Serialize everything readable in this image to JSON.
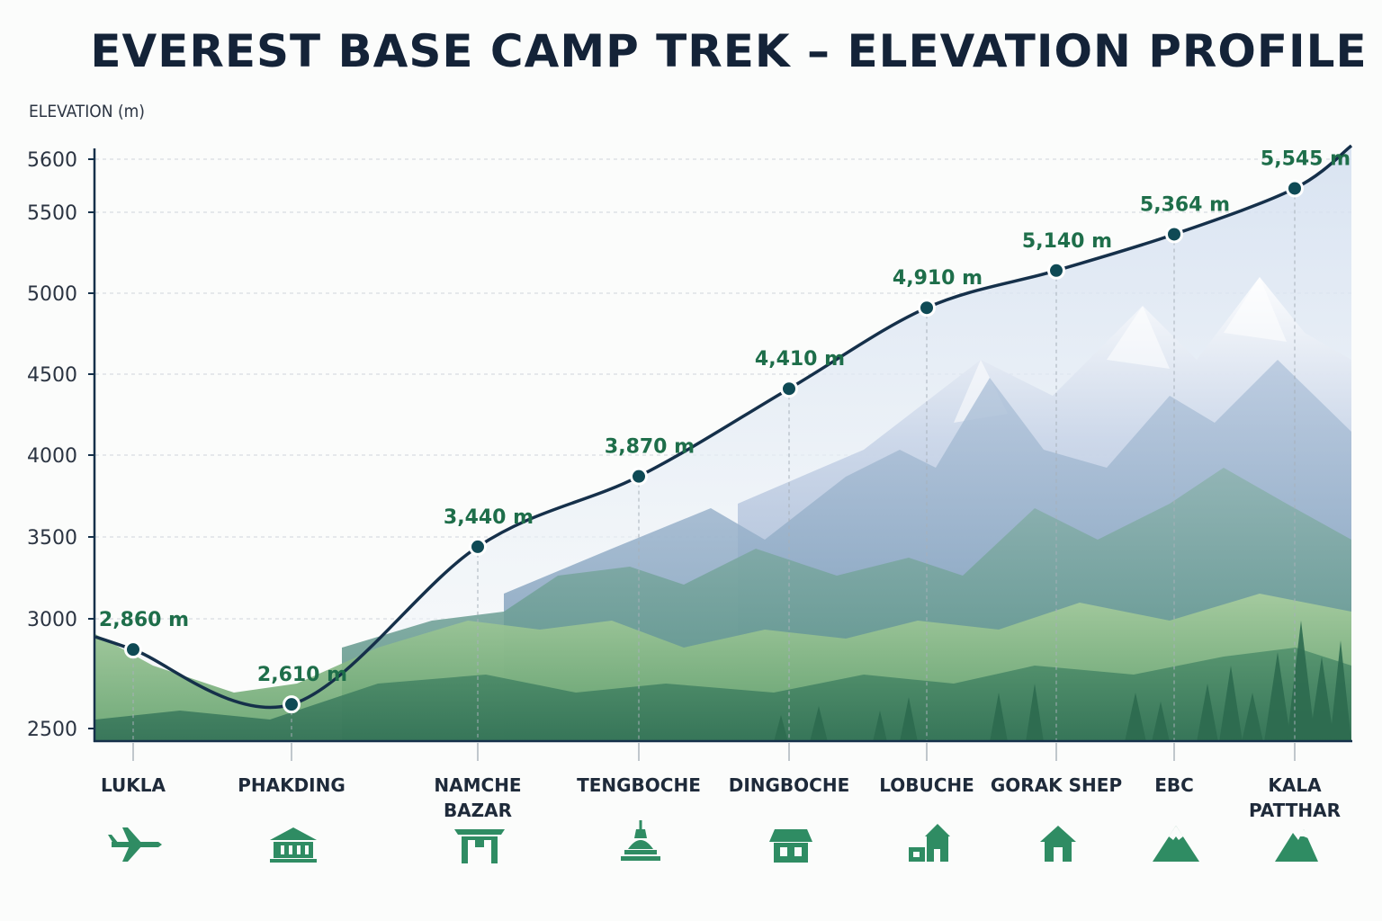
{
  "chart_data": {
    "type": "line",
    "title": "EVEREST BASE CAMP TREK – ELEVATION PROFILE",
    "ylabel": "ELEVATION (m)",
    "xlabel": "",
    "yticks": [
      2500,
      3000,
      3500,
      4000,
      4500,
      5000,
      5500,
      5600
    ],
    "grid": true,
    "categories": [
      "LUKLA",
      "PHAKDING",
      "NAMCHE BAZAR",
      "TENGBOCHE",
      "DINGBOCHE",
      "LOBUCHE",
      "GORAK SHEP",
      "EBC",
      "KALA PATTHAR"
    ],
    "values": [
      2860,
      2610,
      3440,
      3870,
      4410,
      4910,
      5140,
      5364,
      5545
    ],
    "data_labels": [
      "2,860 m",
      "2,610 m",
      "3,440 m",
      "3,870 m",
      "4,410 m",
      "4,910 m",
      "5,140 m",
      "5,364 m",
      "5,545 m"
    ],
    "icons": [
      "plane-icon",
      "lodge-icon",
      "gate-icon",
      "stupa-icon",
      "house-icon",
      "village-icon",
      "hut-icon",
      "mountain-icon",
      "peak-icon"
    ],
    "colors": {
      "line": "#15304a",
      "marker": "#0f4a55",
      "label": "#1e6e4a",
      "icon": "#2f8c63",
      "grid": "#cfd5db",
      "title": "#142338"
    }
  }
}
